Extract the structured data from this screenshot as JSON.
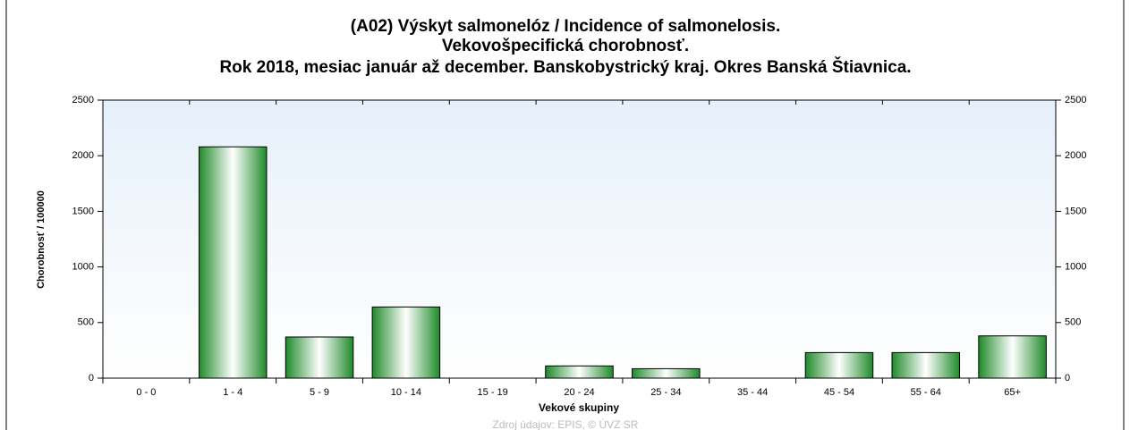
{
  "chart_data": {
    "type": "bar",
    "title": [
      "(A02) Výskyt salmonelóz / Incidence of salmonelosis.",
      "Vekovošpecifická chorobnosť.",
      "Rok 2018, mesiac január až december. Banskobystrický kraj. Okres Banská Štiavnica."
    ],
    "y_label": "Chorobnosť / 100000",
    "x_label": "Vekové skupiny",
    "source": "Zdroj údajov: EPIS, © ÚVZ SR",
    "categories": [
      "0 - 0",
      "1 - 4",
      "5 - 9",
      "10 - 14",
      "15 - 19",
      "20 - 24",
      "25 - 34",
      "35 - 44",
      "45 - 54",
      "55 - 64",
      "65+"
    ],
    "values": [
      0,
      2080,
      370,
      640,
      0,
      110,
      85,
      0,
      230,
      230,
      380
    ],
    "color": "#1f8a2a",
    "ylim": [
      0,
      2500
    ],
    "yticks": [
      0,
      500,
      1000,
      1500,
      2000,
      2500
    ],
    "y2lim": [
      0,
      2500
    ],
    "y2ticks": [
      0,
      500,
      1000,
      1500,
      2000,
      2500
    ]
  }
}
